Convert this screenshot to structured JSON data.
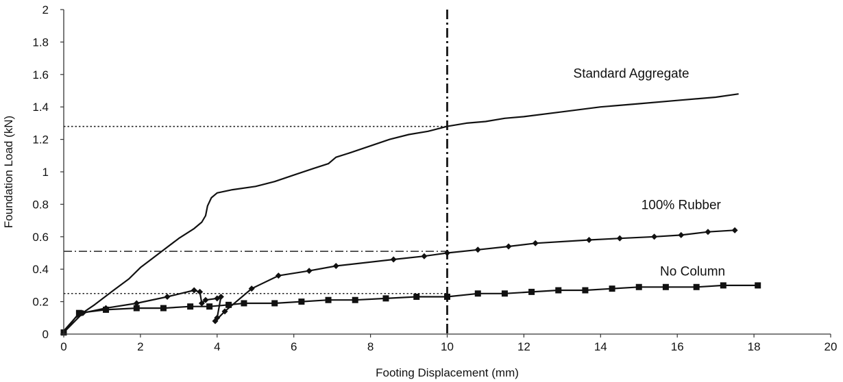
{
  "chart_data": {
    "type": "line",
    "title": "",
    "xlabel": "Footing Displacement (mm)",
    "ylabel": "Foundation Load (kN)",
    "xlim": [
      0,
      20
    ],
    "ylim": [
      0,
      2
    ],
    "x_ticks": [
      0,
      2,
      4,
      6,
      8,
      10,
      12,
      14,
      16,
      18,
      20
    ],
    "y_ticks": [
      0,
      0.2,
      0.4,
      0.6,
      0.8,
      1,
      1.2,
      1.4,
      1.6,
      1.8,
      2
    ],
    "x_tick_labels": [
      "0",
      "2",
      "4",
      "6",
      "8",
      "10",
      "12",
      "14",
      "16",
      "18",
      "20"
    ],
    "y_tick_labels": [
      "0",
      "0.2",
      "0.4",
      "0.6",
      "0.8",
      "1",
      "1.2",
      "1.4",
      "1.6",
      "1.8",
      "2"
    ],
    "grid": false,
    "series": [
      {
        "name": "Standard Aggregate",
        "marker": "none",
        "points": [
          [
            0,
            0.02
          ],
          [
            0.3,
            0.1
          ],
          [
            0.8,
            0.18
          ],
          [
            1.3,
            0.27
          ],
          [
            1.7,
            0.34
          ],
          [
            2.0,
            0.41
          ],
          [
            2.5,
            0.5
          ],
          [
            3.0,
            0.59
          ],
          [
            3.4,
            0.65
          ],
          [
            3.6,
            0.69
          ],
          [
            3.7,
            0.73
          ],
          [
            3.75,
            0.79
          ],
          [
            3.85,
            0.84
          ],
          [
            4.0,
            0.87
          ],
          [
            4.4,
            0.89
          ],
          [
            5.0,
            0.91
          ],
          [
            5.5,
            0.94
          ],
          [
            6.0,
            0.98
          ],
          [
            6.5,
            1.02
          ],
          [
            6.9,
            1.05
          ],
          [
            7.1,
            1.09
          ],
          [
            7.5,
            1.12
          ],
          [
            8.0,
            1.16
          ],
          [
            8.5,
            1.2
          ],
          [
            9.0,
            1.23
          ],
          [
            9.5,
            1.25
          ],
          [
            10.0,
            1.28
          ],
          [
            10.5,
            1.3
          ],
          [
            11.0,
            1.31
          ],
          [
            11.5,
            1.33
          ],
          [
            12.0,
            1.34
          ],
          [
            13.0,
            1.37
          ],
          [
            14.0,
            1.4
          ],
          [
            15.0,
            1.42
          ],
          [
            16.0,
            1.44
          ],
          [
            17.0,
            1.46
          ],
          [
            17.6,
            1.48
          ]
        ]
      },
      {
        "name": "100% Rubber",
        "marker": "diamond",
        "points": [
          [
            0,
            0.01
          ],
          [
            0.5,
            0.13
          ],
          [
            1.1,
            0.16
          ],
          [
            1.9,
            0.19
          ],
          [
            2.7,
            0.23
          ],
          [
            3.4,
            0.27
          ],
          [
            3.55,
            0.26
          ],
          [
            3.6,
            0.19
          ],
          [
            3.7,
            0.21
          ],
          [
            4.0,
            0.22
          ],
          [
            4.1,
            0.23
          ],
          [
            4.0,
            0.1
          ],
          [
            3.95,
            0.08
          ],
          [
            4.2,
            0.14
          ],
          [
            4.9,
            0.28
          ],
          [
            5.6,
            0.36
          ],
          [
            6.4,
            0.39
          ],
          [
            7.1,
            0.42
          ],
          [
            8.6,
            0.46
          ],
          [
            9.4,
            0.48
          ],
          [
            10.0,
            0.5
          ],
          [
            10.8,
            0.52
          ],
          [
            11.6,
            0.54
          ],
          [
            12.3,
            0.56
          ],
          [
            13.7,
            0.58
          ],
          [
            14.5,
            0.59
          ],
          [
            15.4,
            0.6
          ],
          [
            16.1,
            0.61
          ],
          [
            16.8,
            0.63
          ],
          [
            17.5,
            0.64
          ]
        ]
      },
      {
        "name": "No Column",
        "marker": "square",
        "points": [
          [
            0,
            0.01
          ],
          [
            0.4,
            0.13
          ],
          [
            1.1,
            0.15
          ],
          [
            1.9,
            0.16
          ],
          [
            2.6,
            0.16
          ],
          [
            3.3,
            0.17
          ],
          [
            3.8,
            0.17
          ],
          [
            4.3,
            0.18
          ],
          [
            4.7,
            0.19
          ],
          [
            5.5,
            0.19
          ],
          [
            6.2,
            0.2
          ],
          [
            6.9,
            0.21
          ],
          [
            7.6,
            0.21
          ],
          [
            8.4,
            0.22
          ],
          [
            9.2,
            0.23
          ],
          [
            10.0,
            0.23
          ],
          [
            10.8,
            0.25
          ],
          [
            11.5,
            0.25
          ],
          [
            12.2,
            0.26
          ],
          [
            12.9,
            0.27
          ],
          [
            13.6,
            0.27
          ],
          [
            14.3,
            0.28
          ],
          [
            15.0,
            0.29
          ],
          [
            15.7,
            0.29
          ],
          [
            16.5,
            0.29
          ],
          [
            17.2,
            0.3
          ],
          [
            18.1,
            0.3
          ]
        ]
      }
    ],
    "reference_lines": [
      {
        "type": "vertical",
        "x": 10,
        "style": "dash-dot",
        "weight": "heavy",
        "y_range": [
          0,
          2
        ]
      },
      {
        "type": "horizontal",
        "y": 1.28,
        "style": "dotted",
        "x_range": [
          0,
          10
        ]
      },
      {
        "type": "horizontal",
        "y": 0.51,
        "style": "dash-dot",
        "x_range": [
          0,
          10
        ]
      },
      {
        "type": "horizontal",
        "y": 0.25,
        "style": "dotted",
        "x_range": [
          0,
          10
        ]
      }
    ],
    "annotations": [
      {
        "text": "Standard Aggregate",
        "series": "Standard Aggregate",
        "x": 14.8,
        "y": 1.58
      },
      {
        "text": "100% Rubber",
        "series": "100% Rubber",
        "x": 16.1,
        "y": 0.77
      },
      {
        "text": "No Column",
        "series": "No Column",
        "x": 16.4,
        "y": 0.36
      }
    ]
  }
}
